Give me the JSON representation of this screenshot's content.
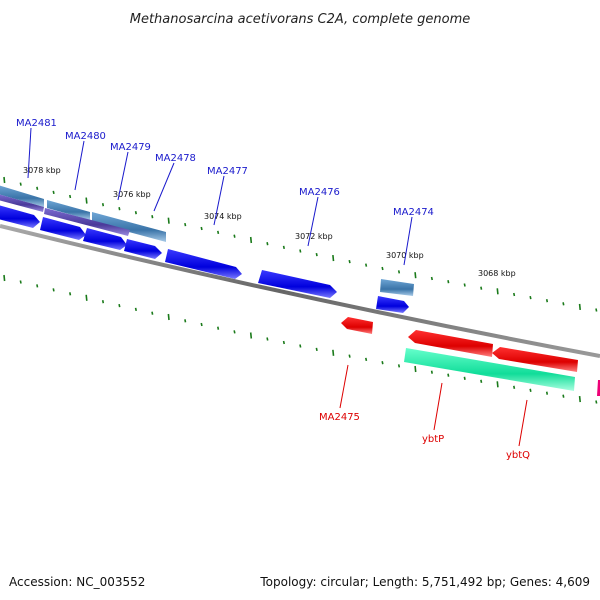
{
  "title": "Methanosarcina acetivorans C2A, complete genome",
  "footer": {
    "accession": "Accession: NC_003552",
    "topology": "Topology: circular; Length: 5,751,492 bp; Genes: 4,609"
  },
  "colors": {
    "backbone": "#777777",
    "forward_cds": "#1010ee",
    "reverse_cds": "#ee1111",
    "forward_rna": "#4a86b8",
    "reverse_other": "#22eeaa",
    "tick": "#1a7a1a",
    "label_forward": "#1a1acc",
    "label_reverse": "#dd0000",
    "magenta": "#ee0077"
  },
  "kbp_labels": [
    "3078 kbp",
    "3076 kbp",
    "3074 kbp",
    "3072 kbp",
    "3070 kbp",
    "3068 kbp"
  ],
  "forward_gene_labels": [
    "MA2481",
    "MA2480",
    "MA2479",
    "MA2478",
    "MA2477",
    "MA2476",
    "MA2474"
  ],
  "reverse_gene_labels": [
    "MA2475",
    "ybtP",
    "ybtQ"
  ]
}
